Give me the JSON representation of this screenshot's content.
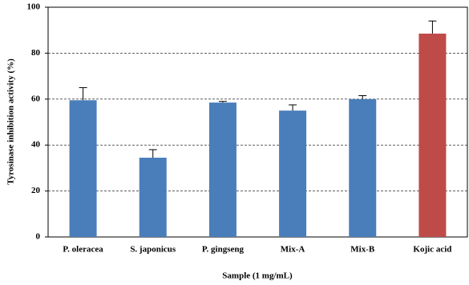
{
  "chart_data": {
    "type": "bar",
    "x_label": "Sample (1 mg/mL)",
    "y_label": "Tyrosinase inhibition activity (%)",
    "categories": [
      "P. oleracea",
      "S. japonicus",
      "P. gingseng",
      "Mix-A",
      "Mix-B",
      "Kojic acid"
    ],
    "values": [
      59.5,
      34.5,
      58.5,
      55,
      60,
      88.5
    ],
    "errors": [
      5.5,
      3.5,
      0.5,
      2.5,
      1.5,
      5.5
    ],
    "colors": [
      "#4a7ebb",
      "#4a7ebb",
      "#4a7ebb",
      "#4a7ebb",
      "#4a7ebb",
      "#be4b48"
    ],
    "ylim": [
      0,
      100
    ],
    "yticks": [
      0,
      20,
      40,
      60,
      80,
      100
    ],
    "grid": true
  }
}
